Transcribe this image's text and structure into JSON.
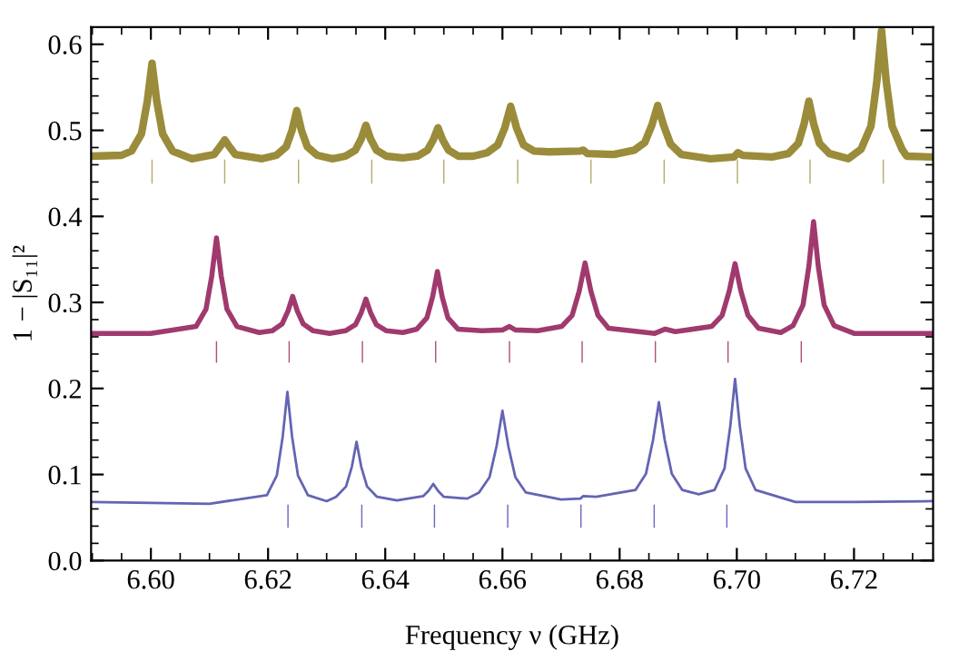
{
  "chart_data": {
    "type": "line",
    "xlabel": "Frequency ν (GHz)",
    "ylabel": "1 − |S₁₁|²",
    "xlim": [
      6.5898,
      6.7335
    ],
    "xticks": [
      {
        "value": 6.6,
        "label": "6.60"
      },
      6.62,
      6.64,
      6.66,
      6.68,
      {
        "value": 6.7,
        "label": "6.70"
      },
      6.72
    ],
    "ylim": [
      0,
      0.62
    ],
    "yticks": [
      {
        "value": 0,
        "label": "0.0"
      },
      0.1,
      0.2,
      0.3,
      0.4,
      0.5,
      0.6
    ],
    "grid": false,
    "legend": false,
    "marker": "none",
    "line_style": "solid",
    "series": [
      {
        "color": "#9a8c3a",
        "x": [
          6.5898,
          6.595,
          6.5967,
          6.5984,
          6.5994,
          6.6002,
          6.601,
          6.602,
          6.6037,
          6.607,
          6.6108,
          6.6118,
          6.6126,
          6.6134,
          6.6144,
          6.619,
          6.6214,
          6.6231,
          6.6241,
          6.6249,
          6.6257,
          6.6267,
          6.6284,
          6.631,
          6.6332,
          6.6349,
          6.6359,
          6.6367,
          6.6375,
          6.6385,
          6.6402,
          6.643,
          6.6455,
          6.6472,
          6.6482,
          6.649,
          6.6498,
          6.6508,
          6.6525,
          6.655,
          6.6574,
          6.6592,
          6.6604,
          6.6614,
          6.6624,
          6.6636,
          6.6654,
          6.668,
          6.6733,
          6.6738,
          6.6745,
          6.679,
          6.6825,
          6.6843,
          6.6855,
          6.6865,
          6.6875,
          6.6887,
          6.6905,
          6.6955,
          6.6995,
          6.7002,
          6.701,
          6.706,
          6.7088,
          6.7105,
          6.7115,
          6.7123,
          6.7131,
          6.7141,
          6.7158,
          6.719,
          6.7212,
          6.7229,
          6.7239,
          6.7247,
          6.7255,
          6.7265,
          6.7282,
          6.729,
          6.7335
        ],
        "values": [
          0.47,
          0.471,
          0.476,
          0.496,
          0.534,
          0.578,
          0.534,
          0.496,
          0.476,
          0.467,
          0.472,
          0.481,
          0.489,
          0.481,
          0.472,
          0.467,
          0.471,
          0.481,
          0.5,
          0.523,
          0.5,
          0.481,
          0.471,
          0.467,
          0.47,
          0.477,
          0.49,
          0.506,
          0.49,
          0.477,
          0.47,
          0.468,
          0.47,
          0.477,
          0.489,
          0.503,
          0.489,
          0.477,
          0.47,
          0.47,
          0.474,
          0.483,
          0.503,
          0.528,
          0.503,
          0.483,
          0.476,
          0.475,
          0.476,
          0.477,
          0.473,
          0.472,
          0.477,
          0.486,
          0.506,
          0.529,
          0.506,
          0.484,
          0.472,
          0.467,
          0.469,
          0.474,
          0.471,
          0.469,
          0.473,
          0.485,
          0.508,
          0.534,
          0.508,
          0.485,
          0.473,
          0.467,
          0.478,
          0.505,
          0.557,
          0.616,
          0.557,
          0.505,
          0.478,
          0.47,
          0.469
        ]
      },
      {
        "color": "#a03a6e",
        "x": [
          6.5898,
          6.6,
          6.6077,
          6.6094,
          6.6104,
          6.6112,
          6.612,
          6.613,
          6.6147,
          6.6185,
          6.6207,
          6.6224,
          6.6234,
          6.6242,
          6.625,
          6.626,
          6.6277,
          6.6305,
          6.6332,
          6.6349,
          6.6359,
          6.6367,
          6.6375,
          6.6385,
          6.6402,
          6.643,
          6.6454,
          6.6471,
          6.6481,
          6.6489,
          6.6497,
          6.6507,
          6.6524,
          6.6565,
          6.66,
          6.6612,
          6.6622,
          6.666,
          6.6701,
          6.6719,
          6.6731,
          6.6741,
          6.6751,
          6.6763,
          6.6781,
          6.686,
          6.6878,
          6.6895,
          6.6957,
          6.6975,
          6.6987,
          6.6997,
          6.7007,
          6.7019,
          6.7037,
          6.7075,
          6.7096,
          6.7113,
          6.7123,
          6.7131,
          6.7139,
          6.7149,
          6.7166,
          6.72,
          6.7335
        ],
        "values": [
          0.264,
          0.264,
          0.272,
          0.292,
          0.331,
          0.375,
          0.331,
          0.292,
          0.272,
          0.265,
          0.267,
          0.275,
          0.29,
          0.307,
          0.29,
          0.275,
          0.267,
          0.264,
          0.267,
          0.274,
          0.288,
          0.304,
          0.288,
          0.274,
          0.267,
          0.265,
          0.269,
          0.282,
          0.307,
          0.336,
          0.307,
          0.282,
          0.269,
          0.267,
          0.268,
          0.272,
          0.268,
          0.267,
          0.272,
          0.285,
          0.313,
          0.346,
          0.313,
          0.285,
          0.27,
          0.264,
          0.269,
          0.266,
          0.272,
          0.285,
          0.313,
          0.345,
          0.313,
          0.285,
          0.27,
          0.265,
          0.273,
          0.297,
          0.342,
          0.394,
          0.342,
          0.297,
          0.273,
          0.264,
          0.264
        ]
      },
      {
        "color": "#6464b4",
        "x": [
          6.5898,
          6.6,
          6.61,
          6.6198,
          6.6215,
          6.6225,
          6.6233,
          6.6241,
          6.6251,
          6.6268,
          6.63,
          6.6316,
          6.6333,
          6.6343,
          6.6351,
          6.6359,
          6.6369,
          6.6386,
          6.642,
          6.6465,
          6.6474,
          6.6482,
          6.649,
          6.65,
          6.654,
          6.656,
          6.6578,
          6.659,
          6.66,
          6.661,
          6.6622,
          6.664,
          6.67,
          6.6733,
          6.6738,
          6.676,
          6.6827,
          6.6845,
          6.6857,
          6.6867,
          6.6877,
          6.6889,
          6.6907,
          6.6935,
          6.6962,
          6.6979,
          6.6989,
          6.6997,
          6.7005,
          6.7015,
          6.7032,
          6.71,
          6.72,
          6.7335
        ],
        "values": [
          0.068,
          0.067,
          0.066,
          0.076,
          0.099,
          0.144,
          0.196,
          0.144,
          0.099,
          0.076,
          0.069,
          0.074,
          0.086,
          0.109,
          0.138,
          0.109,
          0.086,
          0.074,
          0.07,
          0.075,
          0.081,
          0.089,
          0.081,
          0.074,
          0.072,
          0.079,
          0.097,
          0.133,
          0.174,
          0.133,
          0.097,
          0.079,
          0.071,
          0.072,
          0.075,
          0.074,
          0.082,
          0.101,
          0.14,
          0.184,
          0.14,
          0.101,
          0.082,
          0.077,
          0.082,
          0.107,
          0.157,
          0.211,
          0.157,
          0.107,
          0.082,
          0.068,
          0.068,
          0.069
        ]
      },
      {
        "type": "bar",
        "color": "#b3ad6a",
        "x": [
          6.6002,
          6.6126,
          6.6252,
          6.6377,
          6.65,
          6.6626,
          6.6751,
          6.6876,
          6.7001,
          6.7125,
          6.725
        ],
        "base": [
          0.438,
          0.438,
          0.438,
          0.438,
          0.438,
          0.438,
          0.438,
          0.438,
          0.438,
          0.438,
          0.438
        ],
        "values": [
          0.028,
          0.028,
          0.028,
          0.028,
          0.028,
          0.028,
          0.028,
          0.028,
          0.028,
          0.028,
          0.028
        ]
      },
      {
        "type": "bar",
        "color": "#b0507c",
        "x": [
          6.6112,
          6.6236,
          6.6361,
          6.6486,
          6.6612,
          6.6736,
          6.6861,
          6.6985,
          6.711
        ],
        "base": [
          0.23,
          0.23,
          0.23,
          0.23,
          0.23,
          0.23,
          0.23,
          0.23,
          0.23
        ],
        "values": [
          0.025,
          0.025,
          0.025,
          0.025,
          0.025,
          0.025,
          0.025,
          0.025,
          0.025
        ]
      },
      {
        "type": "bar",
        "color": "#6a6ac0",
        "x": [
          6.6234,
          6.636,
          6.6484,
          6.6609,
          6.6734,
          6.6859,
          6.6983
        ],
        "base": [
          0.038,
          0.038,
          0.038,
          0.038,
          0.038,
          0.038,
          0.038
        ],
        "values": [
          0.027,
          0.027,
          0.027,
          0.027,
          0.027,
          0.027,
          0.027
        ]
      }
    ]
  }
}
